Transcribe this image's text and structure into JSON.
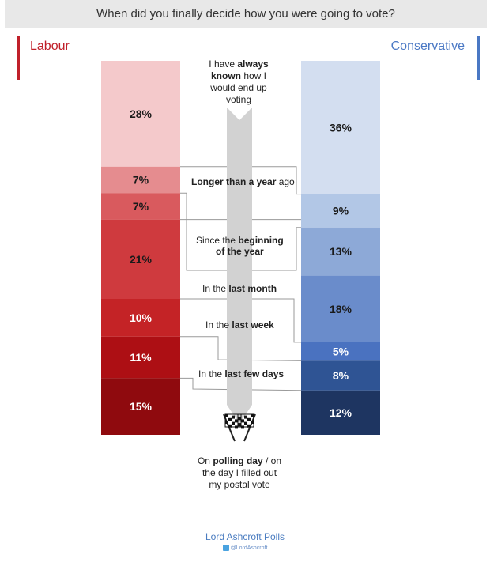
{
  "title": "When did you finally decide how you were going to vote?",
  "colors": {
    "labour": "#c0202a",
    "conservative": "#4a78c4",
    "arrow": "#d2d2d2"
  },
  "chart_data": {
    "type": "bar",
    "stacked": true,
    "categories": [
      "I have always known how I would end up voting",
      "Longer than a year ago",
      "Since the beginning of the year",
      "In the last month",
      "In the last week",
      "In the last few days",
      "On polling day / on the day I filled out my postal vote"
    ],
    "series": [
      {
        "name": "Labour",
        "values": [
          28,
          7,
          7,
          21,
          10,
          11,
          15
        ],
        "labels": [
          "28%",
          "7%",
          "7%",
          "21%",
          "10%",
          "11%",
          "15%"
        ],
        "colors": [
          "#f4c9cb",
          "#e58c8f",
          "#d95a5e",
          "#cf3a3e",
          "#c42326",
          "#ad0f14",
          "#8f0a0e"
        ]
      },
      {
        "name": "Conservative",
        "values": [
          36,
          9,
          13,
          18,
          5,
          8,
          12
        ],
        "labels": [
          "36%",
          "9%",
          "13%",
          "18%",
          "5%",
          "8%",
          "12%"
        ],
        "colors": [
          "#d3def0",
          "#b2c7e6",
          "#8da9d7",
          "#6a8ccb",
          "#4a72c0",
          "#2f5494",
          "#1e3561"
        ]
      }
    ]
  },
  "arrow": {
    "top_pre": "I have ",
    "top_bold": "always known",
    "top_post": " how I would end up voting",
    "bottom_bold": "polling day",
    "bottom_pre": "On ",
    "bottom_post": " / on the day I filled out my postal vote"
  },
  "stages": {
    "year_bold": "Longer than a year",
    "year_post": " ago",
    "begin_pre": "Since the ",
    "begin_bold": "beginning",
    "begin_line2": "of the year",
    "month_pre": "In the ",
    "month_bold": "last month",
    "week_pre": "In the ",
    "week_bold": "last week",
    "days_pre": "In the ",
    "days_bold": "last few days"
  },
  "footer": {
    "title": "Lord Ashcroft Polls",
    "handle": "@LordAshcroft"
  },
  "labels": {
    "labour": "Labour",
    "conservative": "Conservative"
  }
}
